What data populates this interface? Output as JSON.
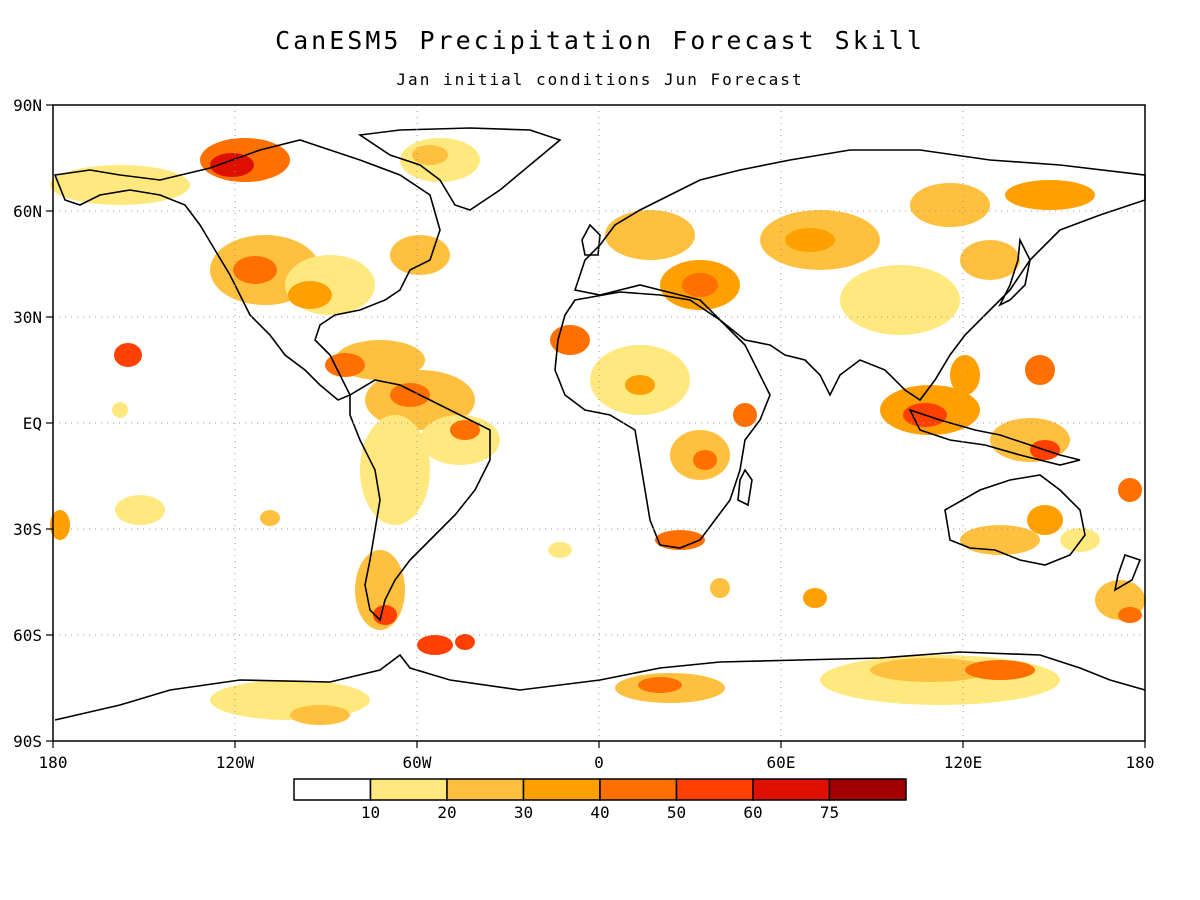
{
  "title": "CanESM5 Precipitation Forecast Skill",
  "subtitle": "Jan initial conditions   Jun Forecast",
  "map": {
    "lat_labels": [
      "90N",
      "60N",
      "30N",
      "EQ",
      "30S",
      "60S",
      "90S"
    ],
    "lon_labels": [
      "180",
      "120W",
      "60W",
      "0",
      "60E",
      "120E",
      "180"
    ],
    "grid": true
  },
  "legend": {
    "levels": [
      "10",
      "20",
      "30",
      "40",
      "50",
      "60",
      "75"
    ],
    "colors": [
      "#ffffff",
      "#ffe97f",
      "#ffc040",
      "#ffa000",
      "#ff7000",
      "#ff4000",
      "#e01000",
      "#a00000"
    ]
  },
  "colors": {
    "land_outline": "#000000",
    "gridline": "#999999",
    "skill_10_20": "#ffe97f",
    "skill_20_30": "#ffc040",
    "skill_30_40": "#ffa000",
    "skill_40_50": "#ff7000",
    "skill_50_60": "#ff4000"
  }
}
